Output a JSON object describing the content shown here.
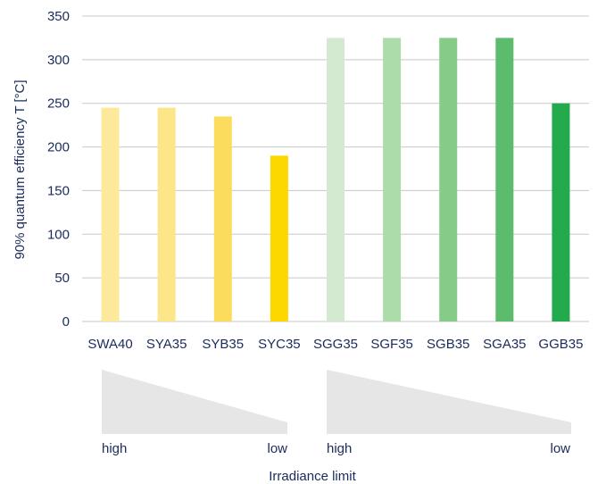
{
  "chart_data": {
    "type": "bar",
    "ylabel": "90% quantum efficiency T [°C]",
    "xlabel": "",
    "ylim": [
      0,
      350
    ],
    "yticks": [
      0,
      50,
      100,
      150,
      200,
      250,
      300,
      350
    ],
    "grid": true,
    "categories": [
      "SWA40",
      "SYA35",
      "SYB35",
      "SYC35",
      "SGG35",
      "SGF35",
      "SGB35",
      "SGA35",
      "GGB35"
    ],
    "values": [
      245,
      245,
      235,
      190,
      325,
      325,
      325,
      325,
      250
    ],
    "bar_colors": [
      "#fde99b",
      "#fde68a",
      "#fcdc5c",
      "#fcd800",
      "#d4ead0",
      "#acdca9",
      "#86cb88",
      "#5dbb6e",
      "#23aa4c"
    ],
    "irradiance": {
      "title": "Irradiance limit",
      "groups": [
        {
          "high_label": "high",
          "low_label": "low"
        },
        {
          "high_label": "high",
          "low_label": "low"
        }
      ],
      "wedge_color": "#e6e6e6"
    },
    "colors": {
      "text": "#1a2b5c",
      "grid": "#c8c8c8"
    }
  }
}
